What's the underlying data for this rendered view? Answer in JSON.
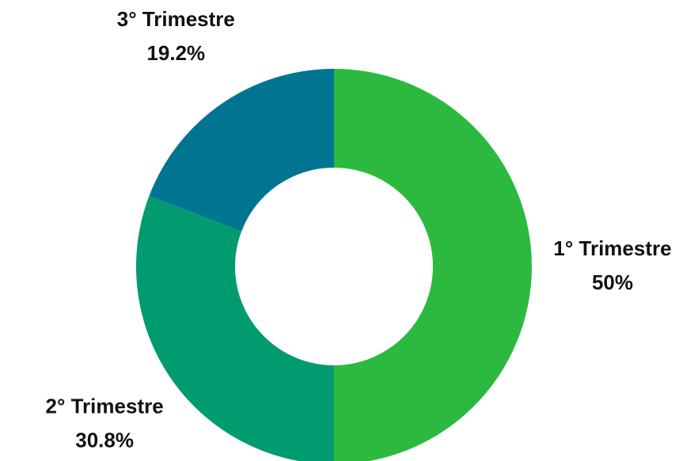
{
  "chart_data": {
    "type": "donut",
    "categories": [
      "1° Trimestre",
      "2° Trimestre",
      "3° Trimestre"
    ],
    "values": [
      50,
      30.8,
      19.2
    ],
    "value_labels": [
      "50%",
      "30.8%",
      "19.2%"
    ],
    "colors": [
      "#2bba3f",
      "#009b6f",
      "#007592"
    ]
  }
}
